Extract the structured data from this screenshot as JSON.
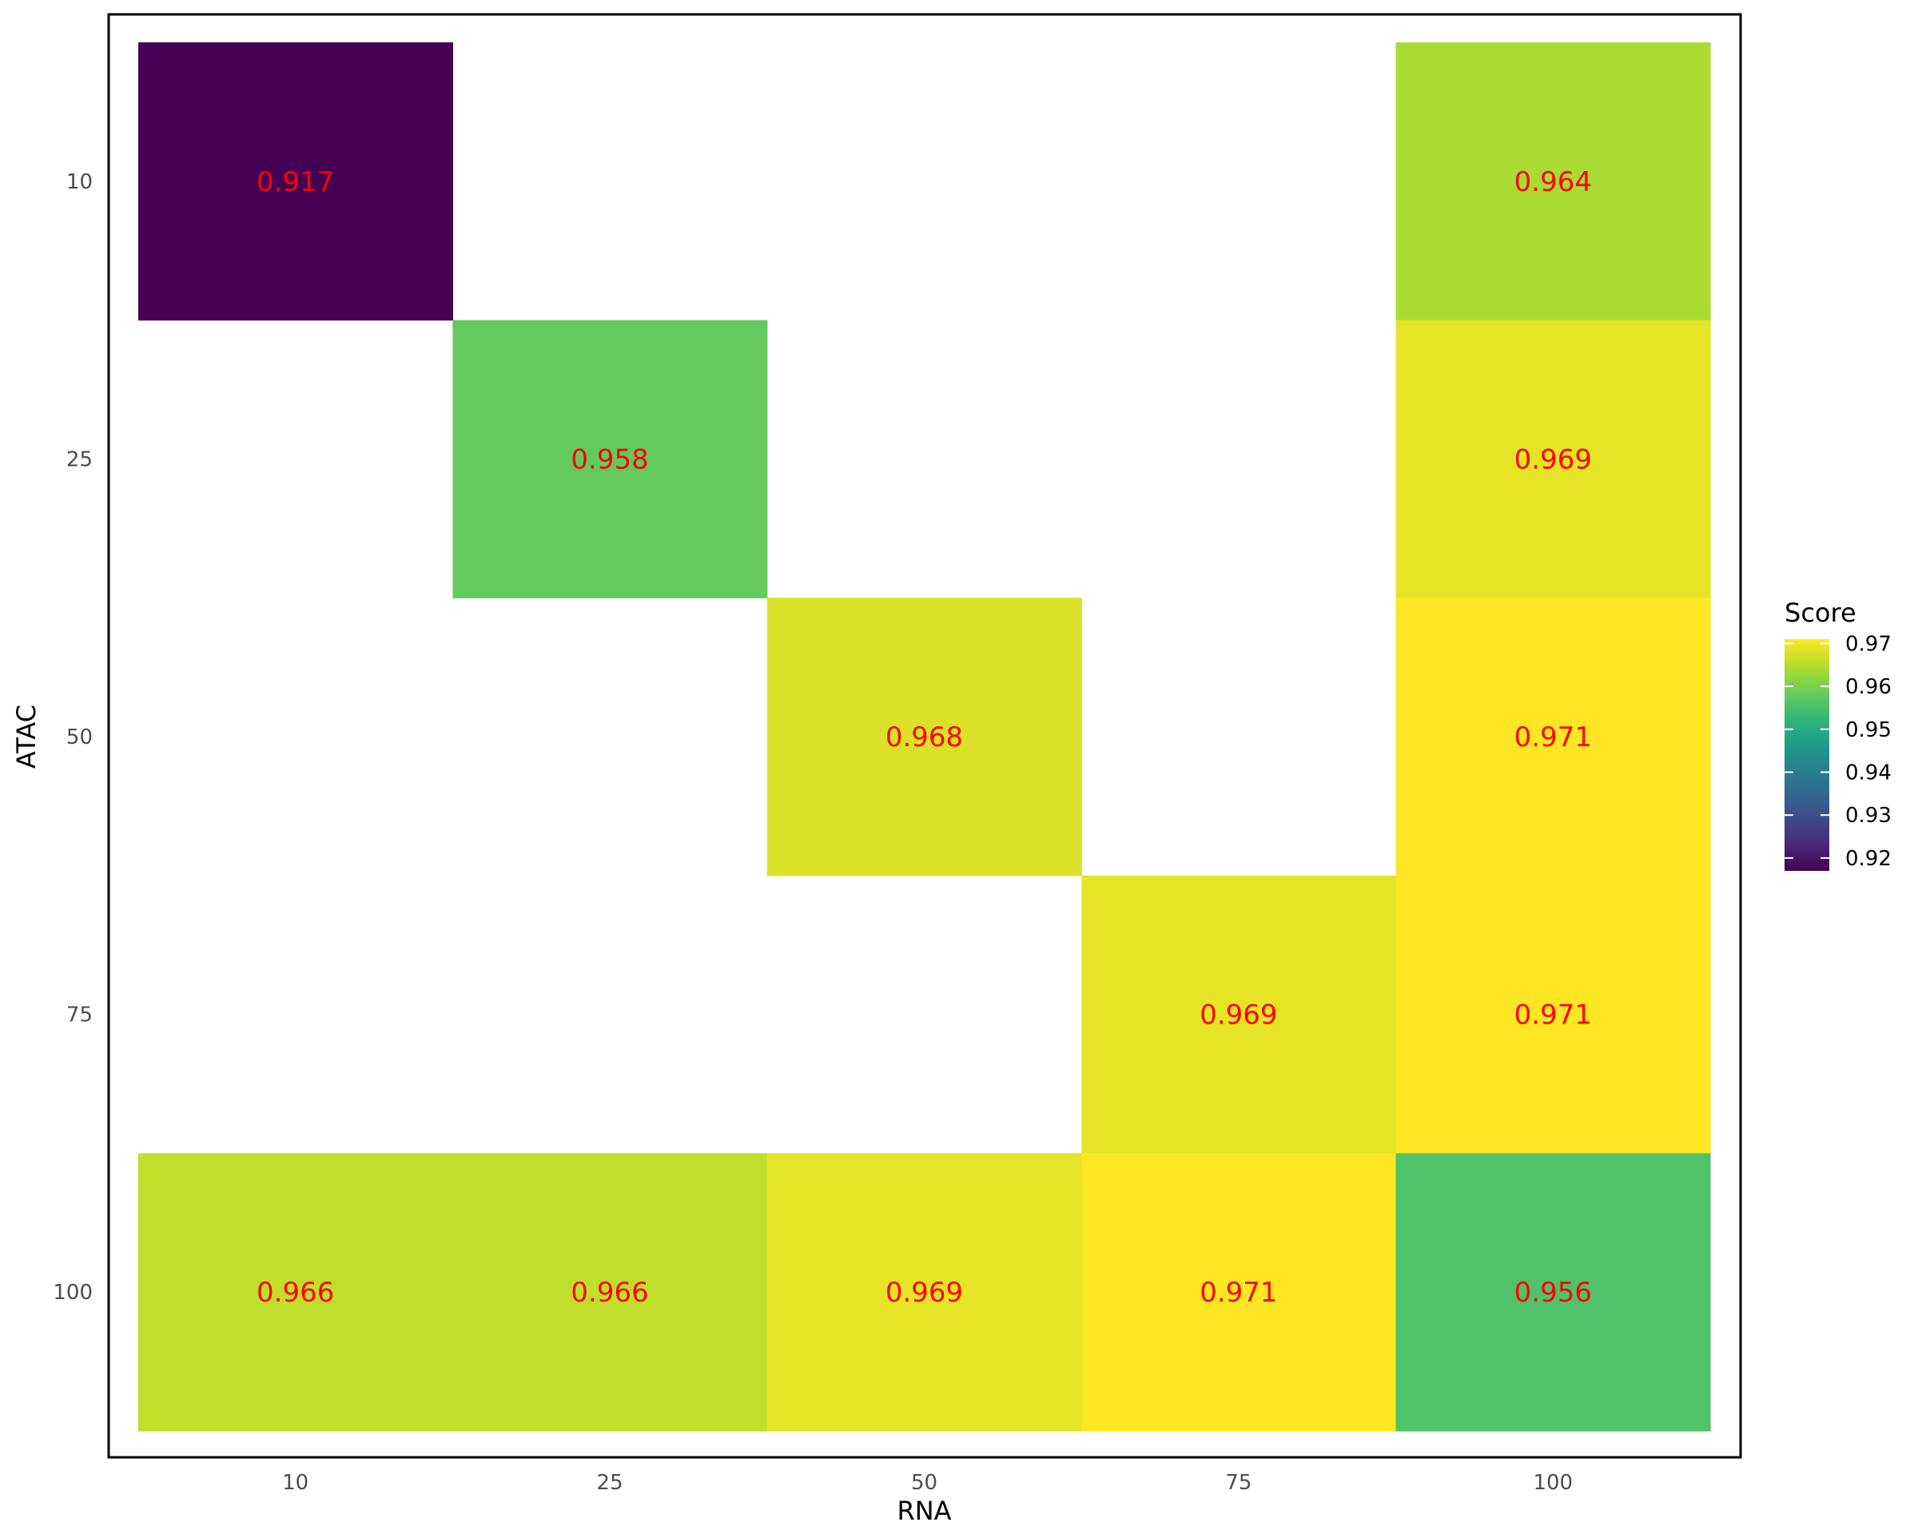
{
  "chart_data": {
    "type": "heatmap",
    "x": {
      "label": "RNA",
      "categories": [
        "10",
        "25",
        "50",
        "75",
        "100"
      ]
    },
    "y": {
      "label": "ATAC",
      "categories": [
        "10",
        "25",
        "50",
        "75",
        "100"
      ]
    },
    "cells": [
      {
        "x": "10",
        "y": "10",
        "value": 0.917,
        "label": "0.917"
      },
      {
        "x": "100",
        "y": "10",
        "value": 0.964,
        "label": "0.964"
      },
      {
        "x": "25",
        "y": "25",
        "value": 0.958,
        "label": "0.958"
      },
      {
        "x": "100",
        "y": "25",
        "value": 0.969,
        "label": "0.969"
      },
      {
        "x": "50",
        "y": "50",
        "value": 0.968,
        "label": "0.968"
      },
      {
        "x": "100",
        "y": "50",
        "value": 0.971,
        "label": "0.971"
      },
      {
        "x": "75",
        "y": "75",
        "value": 0.969,
        "label": "0.969"
      },
      {
        "x": "100",
        "y": "75",
        "value": 0.971,
        "label": "0.971"
      },
      {
        "x": "10",
        "y": "100",
        "value": 0.966,
        "label": "0.966"
      },
      {
        "x": "25",
        "y": "100",
        "value": 0.966,
        "label": "0.966"
      },
      {
        "x": "50",
        "y": "100",
        "value": 0.969,
        "label": "0.969"
      },
      {
        "x": "75",
        "y": "100",
        "value": 0.971,
        "label": "0.971"
      },
      {
        "x": "100",
        "y": "100",
        "value": 0.956,
        "label": "0.956"
      }
    ],
    "cell_label_color": "#ff0000",
    "colormap": "viridis",
    "legend": {
      "title": "Score",
      "position": "right",
      "range": [
        0.917,
        0.971
      ],
      "ticks": [
        {
          "value": 0.92,
          "label": "0.92"
        },
        {
          "value": 0.93,
          "label": "0.93"
        },
        {
          "value": 0.94,
          "label": "0.94"
        },
        {
          "value": 0.95,
          "label": "0.95"
        },
        {
          "value": 0.96,
          "label": "0.96"
        },
        {
          "value": 0.97,
          "label": "0.97"
        }
      ]
    },
    "grid": false,
    "panel_border": true
  }
}
